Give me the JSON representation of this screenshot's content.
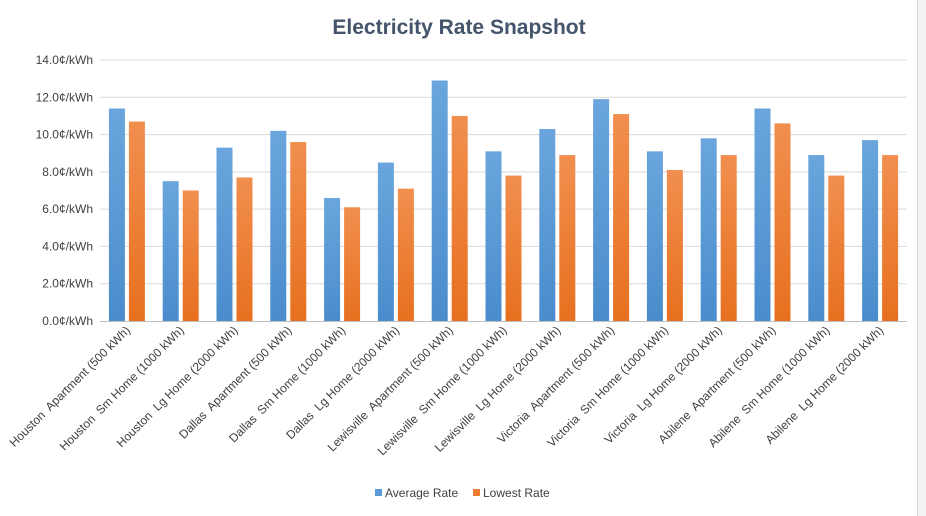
{
  "chart_data": {
    "type": "bar",
    "title": "Electricity Rate Snapshot",
    "xlabel": "",
    "ylabel": "",
    "ylim": [
      0,
      14
    ],
    "yticks": [
      0,
      2,
      4,
      6,
      8,
      10,
      12,
      14
    ],
    "ytick_labels": [
      "0.0¢/kWh",
      "2.0¢/kWh",
      "4.0¢/kWh",
      "6.0¢/kWh",
      "8.0¢/kWh",
      "10.0¢/kWh",
      "12.0¢/kWh",
      "14.0¢/kWh"
    ],
    "grid": true,
    "legend_position": "bottom",
    "categories": [
      "Houston  Apartment (500 kWh)",
      "Houston  Sm Home (1000 kWh)",
      "Houston  Lg Home (2000 kWh)",
      "Dallas  Apartment (500 kWh)",
      "Dallas  Sm Home (1000 kWh)",
      "Dallas  Lg Home (2000 kWh)",
      "Lewisville  Apartment (500 kWh)",
      "Lewisville  Sm Home (1000 kWh)",
      "Lewisville  Lg Home (2000 kWh)",
      "Victoria  Apartment (500 kWh)",
      "Victoria  Sm Home (1000 kWh)",
      "Victoria  Lg Home (2000 kWh)",
      "Abilene  Apartment (500 kWh)",
      "Abilene  Sm Home (1000 kWh)",
      "Abilene  Lg Home (2000 kWh)"
    ],
    "series": [
      {
        "name": "Average Rate",
        "color": "#5b9bd5",
        "values": [
          11.4,
          7.5,
          9.3,
          10.2,
          6.6,
          8.5,
          12.9,
          9.1,
          10.3,
          11.9,
          9.1,
          9.8,
          11.4,
          8.9,
          9.7
        ]
      },
      {
        "name": "Lowest Rate",
        "color": "#ed7d31",
        "values": [
          10.7,
          7.0,
          7.7,
          9.6,
          6.1,
          7.1,
          11.0,
          7.8,
          8.9,
          11.1,
          8.1,
          8.9,
          10.6,
          7.8,
          8.9
        ]
      }
    ]
  }
}
